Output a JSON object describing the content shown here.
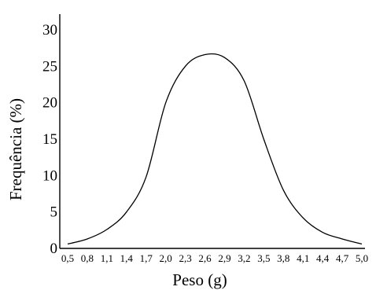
{
  "chart_data": {
    "type": "line",
    "xlabel": "Peso (g)",
    "ylabel": "Frequência (%)",
    "categories": [
      "0,5",
      "0,8",
      "1,1",
      "1,4",
      "1,7",
      "2,0",
      "2,3",
      "2,6",
      "2,9",
      "3,2",
      "3,5",
      "3,8",
      "4,1",
      "4,4",
      "4,7",
      "5,0"
    ],
    "x": [
      0.5,
      0.8,
      1.1,
      1.4,
      1.7,
      2.0,
      2.3,
      2.6,
      2.9,
      3.2,
      3.5,
      3.8,
      4.1,
      4.4,
      4.7,
      5.0
    ],
    "values": [
      0.6,
      1.3,
      2.6,
      5.0,
      9.8,
      20.0,
      25.0,
      26.6,
      26.2,
      23.0,
      15.0,
      8.0,
      4.2,
      2.2,
      1.3,
      0.6
    ],
    "yticks": [
      0,
      5,
      10,
      15,
      20,
      25,
      30
    ],
    "ylim": [
      0,
      30
    ],
    "xlim": [
      0.5,
      5.0
    ],
    "grid": false,
    "legend": "none"
  }
}
